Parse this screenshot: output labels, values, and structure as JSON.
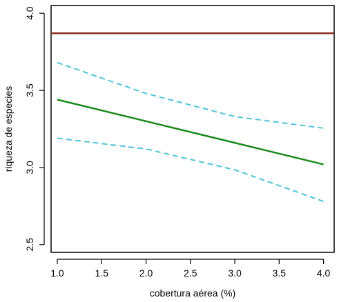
{
  "chart_data": {
    "type": "line",
    "xlabel": "cobertura aérea (%)",
    "ylabel": "riqueza de especies",
    "xlim": [
      0.93,
      4.12
    ],
    "ylim": [
      2.45,
      4.05
    ],
    "x_ticks": [
      1.0,
      1.5,
      2.0,
      2.5,
      3.0,
      3.5,
      4.0
    ],
    "x_tick_labels": [
      "1.0",
      "1.5",
      "2.0",
      "2.5",
      "3.0",
      "3.5",
      "4.0"
    ],
    "y_ticks": [
      2.5,
      3.0,
      3.5,
      4.0
    ],
    "y_tick_labels": [
      "2.5",
      "3.0",
      "3.5",
      "4.0"
    ],
    "grid": false,
    "series": [
      {
        "color": "#8b2a1e",
        "style": "solid",
        "x": [
          0.93,
          4.12
        ],
        "values": [
          3.87,
          3.87
        ]
      },
      {
        "color": "#1a8a1a",
        "style": "solid",
        "x": [
          1.0,
          2.0,
          3.0,
          4.0
        ],
        "values": [
          3.44,
          3.3,
          3.16,
          3.02
        ]
      },
      {
        "color": "#4fc3dc",
        "style": "dashed",
        "x": [
          1.0,
          2.0,
          3.0,
          4.0
        ],
        "values": [
          3.68,
          3.48,
          3.33,
          3.255
        ]
      },
      {
        "color": "#4fc3dc",
        "style": "dashed",
        "x": [
          1.0,
          2.0,
          3.0,
          4.0
        ],
        "values": [
          3.19,
          3.12,
          2.985,
          2.78
        ]
      }
    ]
  }
}
